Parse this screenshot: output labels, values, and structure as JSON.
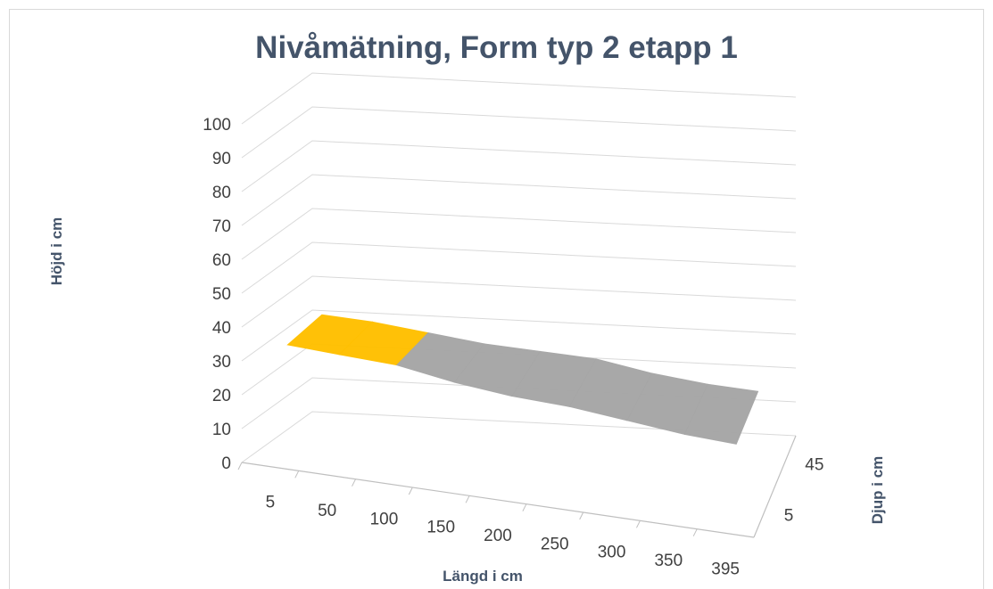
{
  "chart_data": {
    "type": "surface",
    "title": "Nivåmätning, Form typ 2 etapp 1",
    "xlabel": "Längd i cm",
    "ylabel": "Höjd i cm",
    "zlabel": "Djup i cm",
    "x_ticks": [
      "5",
      "50",
      "100",
      "150",
      "200",
      "250",
      "300",
      "350",
      "395"
    ],
    "z_ticks": [
      "5",
      "45"
    ],
    "ylim": [
      0,
      100
    ],
    "y_ticks": [
      "0",
      "10",
      "20",
      "30",
      "40",
      "50",
      "60",
      "70",
      "80",
      "90",
      "100"
    ],
    "x": [
      5,
      50,
      100,
      150,
      200,
      250,
      300,
      350,
      395
    ],
    "depth": [
      5,
      45
    ],
    "series": [
      {
        "values": [
          32,
          31,
          30,
          27,
          25,
          24,
          22,
          20,
          19
        ]
      },
      {
        "values": [
          33,
          32,
          30,
          28,
          27,
          26,
          23,
          21,
          20
        ]
      }
    ],
    "bands": [
      {
        "range": [
          20,
          30
        ],
        "color": "#a6a6a6"
      },
      {
        "range": [
          30,
          40
        ],
        "color": "#ffc000"
      }
    ],
    "grid": true
  }
}
